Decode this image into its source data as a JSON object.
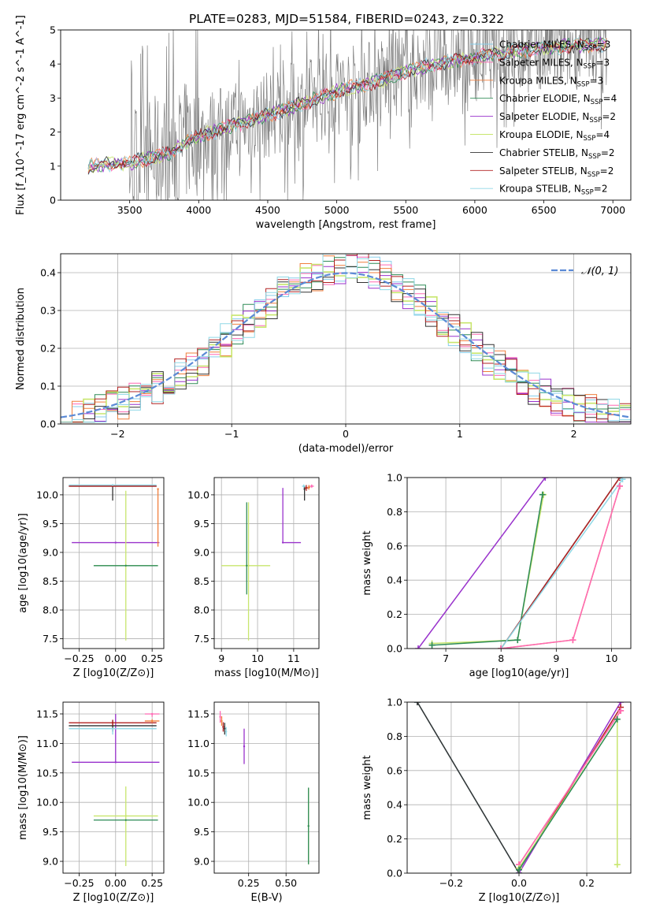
{
  "figure_title": "PLATE=0283, MJD=51584, FIBERID=0243, z=0.322",
  "colors": {
    "gray": "#808080",
    "Chabrier MILES": "#87ceeb",
    "Salpeter MILES": "#ff69b4",
    "Kroupa MILES": "#f07f3c",
    "Chabrier ELODIE": "#2e8b57",
    "Salpeter ELODIE": "#9932cc",
    "Kroupa ELODIE": "#c8e66e",
    "Chabrier STELIB": "#333333",
    "Salpeter STELIB": "#b22222",
    "Kroupa STELIB": "#8fd8e6",
    "gaussian": "#5b8ad6"
  },
  "chart_data": [
    {
      "id": "spectrum",
      "type": "line",
      "xlabel": "wavelength [Angstrom, rest frame]",
      "ylabel": "Flux [f_λ10^-17 erg cm^-2 s^-1 A^-1]",
      "xlim": [
        3000,
        7130
      ],
      "ylim": [
        0,
        5
      ],
      "xticks": [
        "3500",
        "4000",
        "4500",
        "5000",
        "5500",
        "6000",
        "6500",
        "7000"
      ],
      "yticks": [
        "0",
        "1",
        "2",
        "3",
        "4",
        "5"
      ],
      "legend_position": "upper right",
      "series": [
        {
          "name": "Chabrier MILES, N_SSP=3"
        },
        {
          "name": "Salpeter MILES, N_SSP=3"
        },
        {
          "name": "Kroupa MILES, N_SSP=3"
        },
        {
          "name": "Chabrier ELODIE, N_SSP=4"
        },
        {
          "name": "Salpeter ELODIE, N_SSP=2"
        },
        {
          "name": "Kroupa ELODIE, N_SSP=4"
        },
        {
          "name": "Chabrier STELIB, N_SSP=2"
        },
        {
          "name": "Salpeter STELIB, N_SSP=2"
        },
        {
          "name": "Kroupa STELIB, N_SSP=2"
        }
      ],
      "continuum_x": [
        3200,
        3500,
        3800,
        3950,
        4100,
        4500,
        4800,
        5000,
        5300,
        5600,
        6000,
        6300,
        6600,
        7000
      ],
      "continuum_y": [
        1.0,
        1.1,
        1.4,
        1.8,
        2.0,
        2.5,
        2.9,
        3.2,
        3.5,
        3.9,
        4.2,
        4.4,
        4.5,
        4.6
      ]
    },
    {
      "id": "residuals",
      "type": "bar",
      "xlabel": "(data-model)/error",
      "ylabel": "Normed distribution",
      "xlim": [
        -2.5,
        2.5
      ],
      "ylim": [
        0,
        0.45
      ],
      "xticks": [
        "−2",
        "−1",
        "0",
        "1",
        "2"
      ],
      "yticks": [
        "0.0",
        "0.1",
        "0.2",
        "0.3",
        "0.4"
      ],
      "legend": "𝒩(0, 1)",
      "legend_position": "upper right",
      "bin_width": 0.1
    },
    {
      "id": "age_vs_Z",
      "type": "scatter",
      "xlabel": "Z [log10(Z/Z⊙)]",
      "ylabel": "age  [log10(age/yr)]",
      "xlim": [
        -0.36,
        0.33
      ],
      "ylim": [
        7.33,
        10.3
      ],
      "xticks": [
        "−0.25",
        "0.00",
        "0.25"
      ],
      "yticks": [
        "7.5",
        "8.0",
        "8.5",
        "9.0",
        "9.5",
        "10.0"
      ],
      "points": [
        {
          "series": "Salpeter ELODIE",
          "x": 0.0,
          "y": 9.17,
          "xerr": [
            0.3,
            0.3
          ],
          "yerr": [
            0.0,
            0.0
          ]
        },
        {
          "series": "Kroupa ELODIE",
          "x": 0.07,
          "y": 8.77,
          "xerr": [
            0.22,
            0.22
          ],
          "yerr": [
            1.3,
            1.3
          ]
        },
        {
          "series": "Chabrier ELODIE",
          "x": 0.07,
          "y": 8.77,
          "xerr": [
            0.22,
            0.22
          ],
          "yerr": [
            0.0,
            0.0
          ]
        },
        {
          "series": "Chabrier STELIB",
          "x": -0.02,
          "y": 10.15,
          "xerr": [
            0.3,
            0.3
          ],
          "yerr": [
            0.25,
            0.0
          ]
        },
        {
          "series": "Salpeter STELIB",
          "x": -0.02,
          "y": 10.15,
          "xerr": [
            0.3,
            0.3
          ],
          "yerr": [
            0.0,
            0.0
          ]
        },
        {
          "series": "Kroupa STELIB",
          "x": -0.02,
          "y": 10.17,
          "xerr": [
            0.3,
            0.3
          ],
          "yerr": [
            0.0,
            0.0
          ]
        },
        {
          "series": "Kroupa MILES",
          "x": 0.29,
          "y": 10.1,
          "xerr": [
            0.0,
            0.0
          ],
          "yerr": [
            1.0,
            0.0
          ]
        }
      ]
    },
    {
      "id": "age_vs_mass",
      "type": "scatter",
      "xlabel": "mass [log10(M/M⊙)]",
      "ylabel": "",
      "xlim": [
        8.8,
        11.7
      ],
      "ylim": [
        7.33,
        10.3
      ],
      "xticks": [
        "9",
        "10",
        "11"
      ],
      "yticks": [
        "7.5",
        "8.0",
        "8.5",
        "9.0",
        "9.5",
        "10.0"
      ],
      "points": [
        {
          "series": "Kroupa ELODIE",
          "x": 9.75,
          "y": 8.77,
          "xerr": [
            0.75,
            0.6
          ],
          "yerr": [
            1.3,
            1.1
          ]
        },
        {
          "series": "Chabrier ELODIE",
          "x": 9.7,
          "y": 8.77,
          "xerr": [
            0.0,
            0.0
          ],
          "yerr": [
            0.5,
            1.1
          ]
        },
        {
          "series": "Salpeter ELODIE",
          "x": 10.7,
          "y": 9.17,
          "xerr": [
            0.0,
            0.5
          ],
          "yerr": [
            0.0,
            0.95
          ]
        },
        {
          "series": "Chabrier STELIB",
          "x": 11.3,
          "y": 10.1,
          "xerr": [
            0.0,
            0.0
          ],
          "yerr": [
            0.2,
            0.05
          ]
        },
        {
          "series": "Salpeter STELIB",
          "x": 11.35,
          "y": 10.12,
          "xerr": [
            0.05,
            0.05
          ],
          "yerr": [
            0.05,
            0.05
          ]
        },
        {
          "series": "Kroupa STELIB",
          "x": 11.28,
          "y": 10.15,
          "xerr": [
            0.05,
            0.05
          ],
          "yerr": [
            0.03,
            0.03
          ]
        },
        {
          "series": "Salpeter MILES",
          "x": 11.5,
          "y": 10.15,
          "xerr": [
            0.06,
            0.06
          ],
          "yerr": [
            0.03,
            0.03
          ]
        },
        {
          "series": "Kroupa MILES",
          "x": 11.42,
          "y": 10.13,
          "xerr": [
            0.04,
            0.04
          ],
          "yerr": [
            0.04,
            0.04
          ]
        }
      ]
    },
    {
      "id": "weight_vs_age",
      "type": "line",
      "xlabel": "age  [log10(age/yr)]",
      "ylabel": "mass weight",
      "xlim": [
        6.3,
        10.35
      ],
      "ylim": [
        0,
        1.0
      ],
      "xticks": [
        "7",
        "8",
        "9",
        "10"
      ],
      "yticks": [
        "0.0",
        "0.2",
        "0.4",
        "0.6",
        "0.8",
        "1.0"
      ],
      "series": [
        {
          "color_key": "Salpeter ELODIE",
          "x": [
            6.5,
            8.8
          ],
          "y": [
            0.0,
            1.0
          ]
        },
        {
          "color_key": "Kroupa ELODIE",
          "x": [
            6.75,
            8.3,
            8.77
          ],
          "y": [
            0.03,
            0.05,
            0.9
          ]
        },
        {
          "color_key": "Chabrier ELODIE",
          "x": [
            6.75,
            8.3,
            8.75
          ],
          "y": [
            0.02,
            0.05,
            0.9
          ]
        },
        {
          "color_key": "Chabrier STELIB",
          "x": [
            8.0,
            10.15
          ],
          "y": [
            0.0,
            1.0
          ]
        },
        {
          "color_key": "Salpeter STELIB",
          "x": [
            8.0,
            10.15
          ],
          "y": [
            0.0,
            1.0
          ]
        },
        {
          "color_key": "Kroupa STELIB",
          "x": [
            8.0,
            10.2
          ],
          "y": [
            0.0,
            0.99
          ]
        },
        {
          "color_key": "Kroupa MILES",
          "x": [
            8.0,
            9.3,
            10.15
          ],
          "y": [
            0.0,
            0.05,
            0.95
          ]
        },
        {
          "color_key": "Salpeter MILES",
          "x": [
            8.0,
            9.3,
            10.15
          ],
          "y": [
            0.0,
            0.05,
            0.95
          ]
        }
      ]
    },
    {
      "id": "mass_vs_Z",
      "type": "scatter",
      "xlabel": "Z [log10(Z/Z⊙)]",
      "ylabel": "mass [log10(M/M⊙)]",
      "xlim": [
        -0.36,
        0.33
      ],
      "ylim": [
        8.8,
        11.7
      ],
      "xticks": [
        "−0.25",
        "0.00",
        "0.25"
      ],
      "yticks": [
        "9.0",
        "9.5",
        "10.0",
        "10.5",
        "11.0",
        "11.5"
      ],
      "points": [
        {
          "series": "Salpeter ELODIE",
          "x": 0.0,
          "y": 10.68,
          "xerr": [
            0.3,
            0.3
          ],
          "yerr": [
            0.0,
            0.82
          ]
        },
        {
          "series": "Kroupa ELODIE",
          "x": 0.07,
          "y": 9.77,
          "xerr": [
            0.22,
            0.22
          ],
          "yerr": [
            0.85,
            0.5
          ]
        },
        {
          "series": "Chabrier ELODIE",
          "x": 0.07,
          "y": 9.7,
          "xerr": [
            0.22,
            0.22
          ],
          "yerr": [
            0.0,
            0.0
          ]
        },
        {
          "series": "Chabrier STELIB",
          "x": -0.02,
          "y": 11.3,
          "xerr": [
            0.3,
            0.3
          ],
          "yerr": [
            0.1,
            0.1
          ]
        },
        {
          "series": "Salpeter STELIB",
          "x": -0.02,
          "y": 11.35,
          "xerr": [
            0.3,
            0.3
          ],
          "yerr": [
            0.05,
            0.05
          ]
        },
        {
          "series": "Kroupa STELIB",
          "x": -0.02,
          "y": 11.25,
          "xerr": [
            0.3,
            0.3
          ],
          "yerr": [
            0.1,
            0.0
          ]
        },
        {
          "series": "Salpeter MILES",
          "x": 0.25,
          "y": 11.5,
          "xerr": [
            0.05,
            0.05
          ],
          "yerr": [
            0.05,
            0.0
          ]
        },
        {
          "series": "Kroupa MILES",
          "x": 0.25,
          "y": 11.38,
          "xerr": [
            0.05,
            0.05
          ],
          "yerr": [
            0.03,
            0.03
          ]
        }
      ]
    },
    {
      "id": "mass_vs_ebv",
      "type": "scatter",
      "xlabel": "E(B-V)",
      "ylabel": "",
      "xlim": [
        0.02,
        0.72
      ],
      "ylim": [
        8.8,
        11.7
      ],
      "xticks": [
        "0.25",
        "0.50"
      ],
      "yticks": [
        "9.0",
        "9.5",
        "10.0",
        "10.5",
        "11.0",
        "11.5"
      ],
      "points": [
        {
          "series": "Salpeter MILES",
          "x": 0.06,
          "y": 11.45,
          "xerr": [
            0.0,
            0.0
          ],
          "yerr": [
            0.1,
            0.1
          ]
        },
        {
          "series": "Kroupa MILES",
          "x": 0.07,
          "y": 11.38,
          "xerr": [
            0.0,
            0.0
          ],
          "yerr": [
            0.08,
            0.08
          ]
        },
        {
          "series": "Salpeter STELIB",
          "x": 0.08,
          "y": 11.28,
          "xerr": [
            0.0,
            0.0
          ],
          "yerr": [
            0.08,
            0.08
          ]
        },
        {
          "series": "Chabrier STELIB",
          "x": 0.09,
          "y": 11.25,
          "xerr": [
            0.0,
            0.0
          ],
          "yerr": [
            0.1,
            0.1
          ]
        },
        {
          "series": "Kroupa STELIB",
          "x": 0.1,
          "y": 11.2,
          "xerr": [
            0.0,
            0.0
          ],
          "yerr": [
            0.08,
            0.08
          ]
        },
        {
          "series": "Salpeter ELODIE",
          "x": 0.22,
          "y": 10.95,
          "xerr": [
            0.0,
            0.0
          ],
          "yerr": [
            0.3,
            0.3
          ]
        },
        {
          "series": "Kroupa ELODIE",
          "x": 0.65,
          "y": 9.6,
          "xerr": [
            0.0,
            0.0
          ],
          "yerr": [
            0.65,
            0.65
          ]
        },
        {
          "series": "Chabrier ELODIE",
          "x": 0.65,
          "y": 9.6,
          "xerr": [
            0.0,
            0.0
          ],
          "yerr": [
            0.65,
            0.65
          ]
        }
      ]
    },
    {
      "id": "weight_vs_Z",
      "type": "line",
      "xlabel": "Z [log10(Z/Z⊙)]",
      "ylabel": "mass weight",
      "xlim": [
        -0.33,
        0.33
      ],
      "ylim": [
        0,
        1.0
      ],
      "xticks": [
        "−0.2",
        "0.0",
        "0.2"
      ],
      "yticks": [
        "0.0",
        "0.2",
        "0.4",
        "0.6",
        "0.8",
        "1.0"
      ],
      "series": [
        {
          "color_key": "Kroupa STELIB",
          "x": [
            -0.3,
            0.0
          ],
          "y": [
            1.0,
            0.0
          ]
        },
        {
          "color_key": "Chabrier STELIB",
          "x": [
            -0.3,
            0.0
          ],
          "y": [
            1.0,
            0.0
          ]
        },
        {
          "color_key": "Salpeter ELODIE",
          "x": [
            0.0,
            0.3
          ],
          "y": [
            0.0,
            1.0
          ]
        },
        {
          "color_key": "Salpeter STELIB",
          "x": [
            0.0,
            0.3
          ],
          "y": [
            0.02,
            0.97
          ]
        },
        {
          "color_key": "Kroupa MILES",
          "x": [
            0.0,
            0.3
          ],
          "y": [
            0.05,
            0.95
          ]
        },
        {
          "color_key": "Salpeter MILES",
          "x": [
            0.0,
            0.3
          ],
          "y": [
            0.05,
            0.95
          ]
        },
        {
          "color_key": "Kroupa ELODIE",
          "x": [
            0.0,
            0.29,
            0.29
          ],
          "y": [
            0.03,
            0.9,
            0.05
          ]
        },
        {
          "color_key": "Chabrier ELODIE",
          "x": [
            0.0,
            0.29
          ],
          "y": [
            0.02,
            0.9
          ]
        }
      ]
    }
  ]
}
